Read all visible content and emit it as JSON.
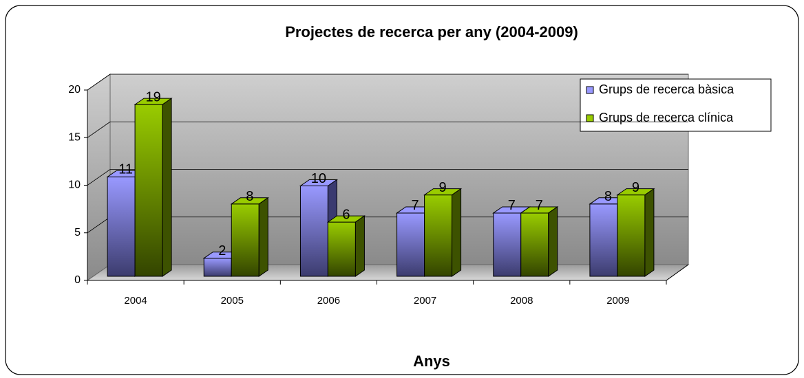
{
  "chart_data": {
    "type": "bar3d",
    "title": "Projectes de recerca per any (2004-2009)",
    "x_label": "Anys",
    "categories": [
      "2004",
      "2005",
      "2006",
      "2007",
      "2008",
      "2009"
    ],
    "series": [
      {
        "name": "Grups de recerca bàsica",
        "color": "#9999ff",
        "values": [
          11,
          2,
          10,
          7,
          7,
          8
        ]
      },
      {
        "name": "Grups de recerca clínica",
        "color": "#99cc00",
        "values": [
          19,
          8,
          6,
          9,
          7,
          9
        ]
      }
    ],
    "ylim": [
      0,
      20
    ],
    "yticks": [
      0,
      5,
      10,
      15,
      20
    ],
    "grid": true,
    "legend": "upper right"
  }
}
